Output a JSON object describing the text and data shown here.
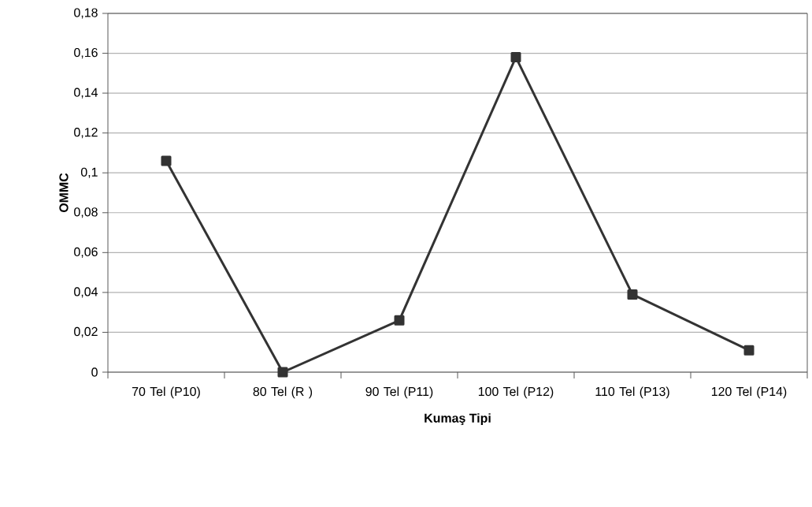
{
  "chart_data": {
    "type": "line",
    "xlabel": "Kumaş Tipi",
    "ylabel": "OMMC",
    "categories": [
      "70 Tel (P10)",
      "80 Tel (R )",
      "90 Tel (P11)",
      "100 Tel (P12)",
      "110 Tel (P13)",
      "120 Tel (P14)"
    ],
    "series": [
      {
        "color": "#333333",
        "values": [
          0.106,
          0,
          0.026,
          0.158,
          0.039,
          0.011
        ]
      }
    ],
    "ylim": [
      0,
      0.18
    ],
    "yticks": [
      {
        "value": 0,
        "label": "0"
      },
      {
        "value": 0.02,
        "label": "0,02"
      },
      {
        "value": 0.04,
        "label": "0,04"
      },
      {
        "value": 0.06,
        "label": "0,06"
      },
      {
        "value": 0.08,
        "label": "0,08"
      },
      {
        "value": 0.1,
        "label": "0,1"
      },
      {
        "value": 0.12,
        "label": "0,12"
      },
      {
        "value": 0.14,
        "label": "0,14"
      },
      {
        "value": 0.16,
        "label": "0,16"
      },
      {
        "value": 0.18,
        "label": "0,18"
      }
    ],
    "grid": "y",
    "marker": "square",
    "line_style": "solid"
  }
}
